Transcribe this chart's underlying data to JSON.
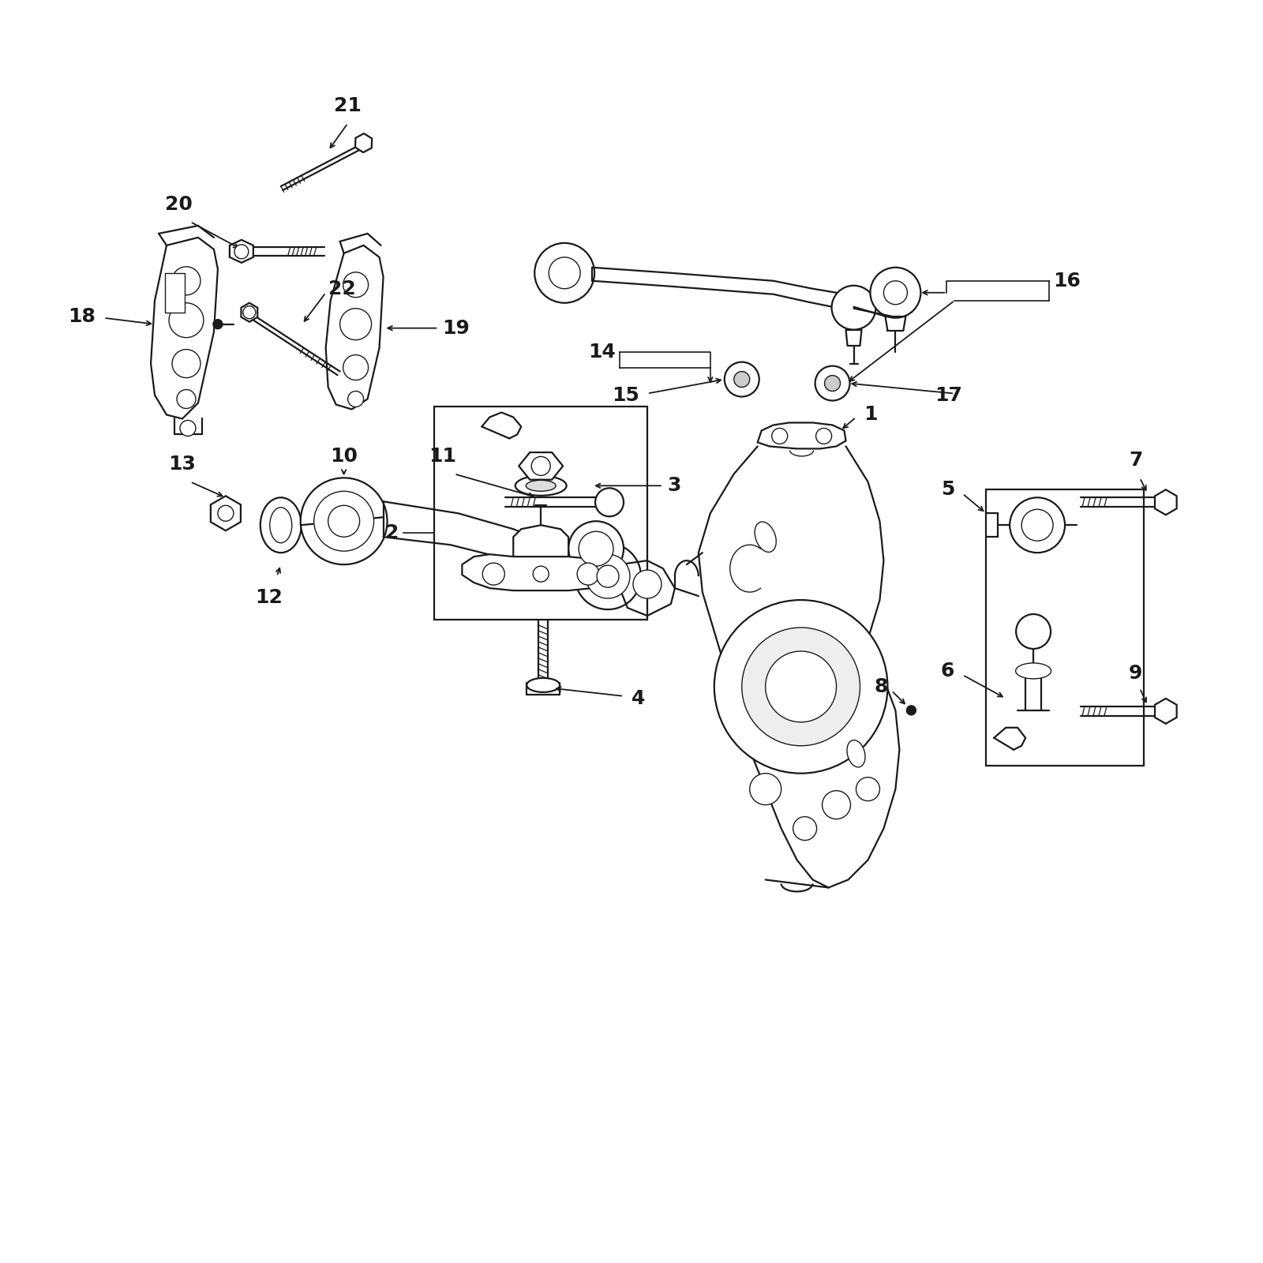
{
  "background_color": "#ffffff",
  "line_color": "#1a1a1a",
  "fig_width": 16,
  "fig_height": 16,
  "lw_main": 1.6,
  "lw_thin": 1.0,
  "label_fs": 18
}
